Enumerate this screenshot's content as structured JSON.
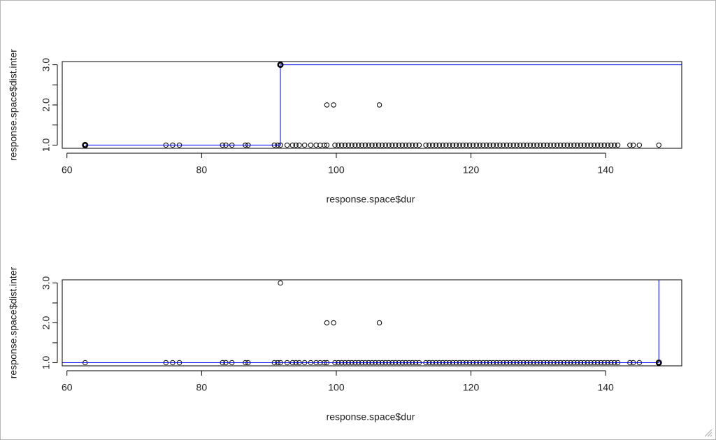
{
  "chart_data": [
    {
      "type": "scatter",
      "xlabel": "response.space$dur",
      "ylabel": "response.space$dist.inter",
      "xlim": [
        59.3,
        151.3
      ],
      "ylim": [
        0.92,
        3.08
      ],
      "xticks": [
        60,
        80,
        100,
        120,
        140
      ],
      "yticks": [
        {
          "value": 1,
          "label": "1.0"
        },
        {
          "value": 2,
          "label": "2.0"
        },
        {
          "value": 3,
          "label": "3.0"
        }
      ],
      "yminor": [
        1.5,
        2.5
      ],
      "points": {
        "x": [
          62.7,
          74.7,
          75.7,
          76.7,
          83.1,
          83.6,
          84.5,
          86.5,
          86.9,
          90.8,
          91.3,
          91.7,
          92.7,
          93.5,
          94.0,
          94.5,
          95.3,
          96.2,
          97.0,
          97.6,
          98.2,
          98.6,
          99.8,
          100.3,
          100.8,
          101.3,
          101.8,
          102.3,
          102.8,
          103.3,
          103.8,
          104.3,
          104.8,
          105.3,
          105.8,
          106.3,
          106.8,
          107.3,
          107.8,
          108.3,
          108.8,
          109.3,
          109.8,
          110.3,
          110.8,
          111.3,
          111.8,
          112.3,
          113.3,
          113.8,
          114.3,
          114.8,
          115.3,
          115.8,
          116.3,
          116.8,
          117.3,
          117.8,
          118.3,
          118.8,
          119.3,
          119.8,
          120.3,
          120.8,
          121.3,
          121.8,
          122.3,
          122.8,
          123.3,
          123.8,
          124.3,
          124.8,
          125.3,
          125.8,
          126.3,
          126.8,
          127.3,
          127.8,
          128.3,
          128.8,
          129.3,
          129.8,
          130.3,
          130.8,
          131.3,
          131.8,
          132.3,
          132.8,
          133.3,
          133.8,
          134.3,
          134.8,
          135.3,
          135.8,
          136.3,
          136.8,
          137.3,
          137.8,
          138.3,
          138.8,
          139.3,
          139.8,
          140.3,
          140.8,
          141.3,
          141.8,
          143.6,
          144.1,
          145.0,
          147.9,
          91.7,
          98.6,
          99.6,
          106.4
        ],
        "y": [
          1,
          1,
          1,
          1,
          1,
          1,
          1,
          1,
          1,
          1,
          1,
          1,
          1,
          1,
          1,
          1,
          1,
          1,
          1,
          1,
          1,
          1,
          1,
          1,
          1,
          1,
          1,
          1,
          1,
          1,
          1,
          1,
          1,
          1,
          1,
          1,
          1,
          1,
          1,
          1,
          1,
          1,
          1,
          1,
          1,
          1,
          1,
          1,
          1,
          1,
          1,
          1,
          1,
          1,
          1,
          1,
          1,
          1,
          1,
          1,
          1,
          1,
          1,
          1,
          1,
          1,
          1,
          1,
          1,
          1,
          1,
          1,
          1,
          1,
          1,
          1,
          1,
          1,
          1,
          1,
          1,
          1,
          1,
          1,
          1,
          1,
          1,
          1,
          1,
          1,
          1,
          1,
          1,
          1,
          1,
          1,
          1,
          1,
          1,
          1,
          1,
          1,
          1,
          1,
          1,
          1,
          1,
          1,
          1,
          1,
          3,
          2,
          2,
          2
        ]
      },
      "step_line": {
        "color": "#0000ff",
        "x": [
          62.7,
          91.7,
          91.7,
          151.3
        ],
        "y": [
          1,
          1,
          3,
          3
        ]
      },
      "highlight": {
        "x": [
          62.7,
          91.7
        ],
        "y": [
          1,
          3
        ]
      }
    },
    {
      "type": "scatter",
      "xlabel": "response.space$dur",
      "ylabel": "response.space$dist.inter",
      "xlim": [
        59.3,
        151.3
      ],
      "ylim": [
        0.92,
        3.08
      ],
      "xticks": [
        60,
        80,
        100,
        120,
        140
      ],
      "yticks": [
        {
          "value": 1,
          "label": "1.0"
        },
        {
          "value": 2,
          "label": "2.0"
        },
        {
          "value": 3,
          "label": "3.0"
        }
      ],
      "yminor": [
        1.5,
        2.5
      ],
      "points": {
        "x": [
          62.7,
          74.7,
          75.7,
          76.7,
          83.1,
          83.6,
          84.5,
          86.5,
          86.9,
          90.8,
          91.3,
          91.7,
          92.7,
          93.5,
          94.0,
          94.5,
          95.3,
          96.2,
          97.0,
          97.6,
          98.2,
          98.6,
          99.8,
          100.3,
          100.8,
          101.3,
          101.8,
          102.3,
          102.8,
          103.3,
          103.8,
          104.3,
          104.8,
          105.3,
          105.8,
          106.3,
          106.8,
          107.3,
          107.8,
          108.3,
          108.8,
          109.3,
          109.8,
          110.3,
          110.8,
          111.3,
          111.8,
          112.3,
          113.3,
          113.8,
          114.3,
          114.8,
          115.3,
          115.8,
          116.3,
          116.8,
          117.3,
          117.8,
          118.3,
          118.8,
          119.3,
          119.8,
          120.3,
          120.8,
          121.3,
          121.8,
          122.3,
          122.8,
          123.3,
          123.8,
          124.3,
          124.8,
          125.3,
          125.8,
          126.3,
          126.8,
          127.3,
          127.8,
          128.3,
          128.8,
          129.3,
          129.8,
          130.3,
          130.8,
          131.3,
          131.8,
          132.3,
          132.8,
          133.3,
          133.8,
          134.3,
          134.8,
          135.3,
          135.8,
          136.3,
          136.8,
          137.3,
          137.8,
          138.3,
          138.8,
          139.3,
          139.8,
          140.3,
          140.8,
          141.3,
          141.8,
          143.6,
          144.1,
          145.0,
          147.9,
          91.7,
          98.6,
          99.6,
          106.4
        ],
        "y": [
          1,
          1,
          1,
          1,
          1,
          1,
          1,
          1,
          1,
          1,
          1,
          1,
          1,
          1,
          1,
          1,
          1,
          1,
          1,
          1,
          1,
          1,
          1,
          1,
          1,
          1,
          1,
          1,
          1,
          1,
          1,
          1,
          1,
          1,
          1,
          1,
          1,
          1,
          1,
          1,
          1,
          1,
          1,
          1,
          1,
          1,
          1,
          1,
          1,
          1,
          1,
          1,
          1,
          1,
          1,
          1,
          1,
          1,
          1,
          1,
          1,
          1,
          1,
          1,
          1,
          1,
          1,
          1,
          1,
          1,
          1,
          1,
          1,
          1,
          1,
          1,
          1,
          1,
          1,
          1,
          1,
          1,
          1,
          1,
          1,
          1,
          1,
          1,
          1,
          1,
          1,
          1,
          1,
          1,
          1,
          1,
          1,
          1,
          1,
          1,
          1,
          1,
          1,
          1,
          1,
          1,
          1,
          1,
          1,
          1,
          3,
          2,
          2,
          2
        ]
      },
      "step_line": {
        "color": "#0000ff",
        "x": [
          59.3,
          147.9,
          147.9
        ],
        "y": [
          1,
          1,
          3.08
        ]
      },
      "highlight": {
        "x": [
          147.9
        ],
        "y": [
          1
        ]
      }
    }
  ]
}
